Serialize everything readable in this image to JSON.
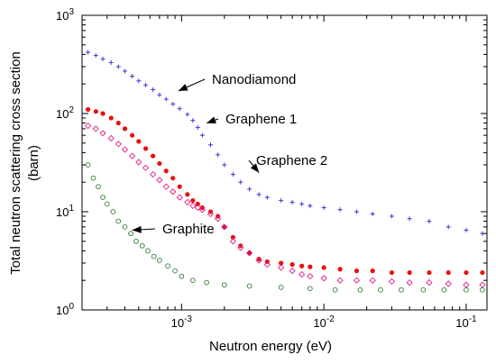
{
  "chart_data": {
    "type": "scatter",
    "xscale": "log",
    "yscale": "log",
    "xlim": [
      0.0002,
      0.14
    ],
    "ylim": [
      1,
      1000
    ],
    "xlabel": "Neutron energy (eV)",
    "ylabel_line1": "Total neutron scattering cross section",
    "ylabel_line2": "(barn)",
    "grid": false,
    "legend": "none",
    "xticks": [
      {
        "value": 0.001,
        "base": "10",
        "exp": "-3"
      },
      {
        "value": 0.01,
        "base": "10",
        "exp": "-2"
      },
      {
        "value": 0.1,
        "base": "10",
        "exp": "-1"
      }
    ],
    "yticks": [
      {
        "value": 1,
        "base": "10",
        "exp": "0"
      },
      {
        "value": 10,
        "base": "10",
        "exp": "1"
      },
      {
        "value": 100,
        "base": "10",
        "exp": "2"
      },
      {
        "value": 1000,
        "base": "10",
        "exp": "3"
      }
    ],
    "series": [
      {
        "name": "Nanodiamond",
        "marker": "plus",
        "color": "#3b3bd6",
        "points": [
          [
            0.00022,
            420
          ],
          [
            0.00025,
            390
          ],
          [
            0.00028,
            360
          ],
          [
            0.00032,
            330
          ],
          [
            0.00036,
            300
          ],
          [
            0.0004,
            270
          ],
          [
            0.00045,
            240
          ],
          [
            0.0005,
            215
          ],
          [
            0.00056,
            195
          ],
          [
            0.00063,
            175
          ],
          [
            0.0007,
            155
          ],
          [
            0.00078,
            140
          ],
          [
            0.00087,
            125
          ],
          [
            0.00097,
            112
          ],
          [
            0.0011,
            98
          ],
          [
            0.0012,
            85
          ],
          [
            0.0013,
            72
          ],
          [
            0.0014,
            60
          ],
          [
            0.0016,
            48
          ],
          [
            0.0018,
            38
          ],
          [
            0.002,
            30
          ],
          [
            0.0023,
            24
          ],
          [
            0.0026,
            20
          ],
          [
            0.003,
            17
          ],
          [
            0.0035,
            15
          ],
          [
            0.004,
            14
          ],
          [
            0.005,
            13
          ],
          [
            0.006,
            12.5
          ],
          [
            0.007,
            12
          ],
          [
            0.008,
            11.5
          ],
          [
            0.01,
            11
          ],
          [
            0.013,
            10.5
          ],
          [
            0.017,
            10
          ],
          [
            0.022,
            9.5
          ],
          [
            0.03,
            9
          ],
          [
            0.04,
            8.5
          ],
          [
            0.055,
            8
          ],
          [
            0.075,
            7
          ],
          [
            0.1,
            6.5
          ],
          [
            0.13,
            6
          ]
        ]
      },
      {
        "name": "Graphene 1",
        "marker": "dot",
        "color": "#e81010",
        "points": [
          [
            0.00022,
            110
          ],
          [
            0.00025,
            105
          ],
          [
            0.00028,
            100
          ],
          [
            0.00032,
            90
          ],
          [
            0.00036,
            80
          ],
          [
            0.0004,
            70
          ],
          [
            0.00045,
            60
          ],
          [
            0.0005,
            52
          ],
          [
            0.00056,
            44
          ],
          [
            0.00063,
            37
          ],
          [
            0.0007,
            31
          ],
          [
            0.00078,
            26
          ],
          [
            0.00087,
            22
          ],
          [
            0.00097,
            18
          ],
          [
            0.0011,
            15
          ],
          [
            0.0012,
            13
          ],
          [
            0.0013,
            12
          ],
          [
            0.0014,
            11
          ],
          [
            0.0016,
            10
          ],
          [
            0.0018,
            9
          ],
          [
            0.002,
            7
          ],
          [
            0.0023,
            5.5
          ],
          [
            0.0026,
            4.5
          ],
          [
            0.003,
            3.8
          ],
          [
            0.0035,
            3.3
          ],
          [
            0.004,
            3.1
          ],
          [
            0.005,
            3
          ],
          [
            0.006,
            2.9
          ],
          [
            0.007,
            2.8
          ],
          [
            0.008,
            2.75
          ],
          [
            0.01,
            2.7
          ],
          [
            0.013,
            2.6
          ],
          [
            0.017,
            2.5
          ],
          [
            0.022,
            2.5
          ],
          [
            0.03,
            2.4
          ],
          [
            0.04,
            2.4
          ],
          [
            0.055,
            2.4
          ],
          [
            0.075,
            2.4
          ],
          [
            0.1,
            2.4
          ],
          [
            0.13,
            2.4
          ]
        ]
      },
      {
        "name": "Graphene 2",
        "marker": "diamond",
        "color": "#e0208a",
        "points": [
          [
            0.00022,
            75
          ],
          [
            0.00025,
            70
          ],
          [
            0.00028,
            63
          ],
          [
            0.00032,
            56
          ],
          [
            0.00036,
            49
          ],
          [
            0.0004,
            43
          ],
          [
            0.00045,
            37
          ],
          [
            0.0005,
            32
          ],
          [
            0.00056,
            28
          ],
          [
            0.00063,
            24
          ],
          [
            0.0007,
            21
          ],
          [
            0.00078,
            18
          ],
          [
            0.00087,
            16
          ],
          [
            0.00097,
            14
          ],
          [
            0.0011,
            12.5
          ],
          [
            0.0012,
            11.5
          ],
          [
            0.0013,
            11
          ],
          [
            0.0014,
            10.5
          ],
          [
            0.0016,
            9.5
          ],
          [
            0.0018,
            8.5
          ],
          [
            0.002,
            7
          ],
          [
            0.0023,
            5
          ],
          [
            0.0026,
            4.3
          ],
          [
            0.003,
            3.8
          ],
          [
            0.0035,
            3.2
          ],
          [
            0.004,
            2.9
          ],
          [
            0.005,
            2.7
          ],
          [
            0.006,
            2.5
          ],
          [
            0.007,
            2.3
          ],
          [
            0.008,
            2.2
          ],
          [
            0.01,
            2.1
          ],
          [
            0.013,
            2
          ],
          [
            0.017,
            2
          ],
          [
            0.022,
            2
          ],
          [
            0.03,
            1.95
          ],
          [
            0.04,
            1.9
          ],
          [
            0.055,
            1.9
          ],
          [
            0.075,
            1.85
          ],
          [
            0.1,
            1.8
          ],
          [
            0.13,
            1.8
          ]
        ]
      },
      {
        "name": "Graphite",
        "marker": "circle",
        "color": "#2e7d32",
        "points": [
          [
            0.00022,
            30
          ],
          [
            0.00024,
            22
          ],
          [
            0.00026,
            18
          ],
          [
            0.00028,
            14
          ],
          [
            0.0003,
            12
          ],
          [
            0.00033,
            10
          ],
          [
            0.00036,
            8
          ],
          [
            0.0004,
            7
          ],
          [
            0.00044,
            6
          ],
          [
            0.00048,
            5
          ],
          [
            0.00053,
            4.5
          ],
          [
            0.00058,
            4
          ],
          [
            0.00064,
            3.5
          ],
          [
            0.0007,
            3.2
          ],
          [
            0.0008,
            2.8
          ],
          [
            0.0009,
            2.5
          ],
          [
            0.001,
            2.2
          ],
          [
            0.0012,
            2
          ],
          [
            0.0015,
            1.9
          ],
          [
            0.002,
            1.8
          ],
          [
            0.003,
            1.75
          ],
          [
            0.005,
            1.7
          ],
          [
            0.008,
            1.65
          ],
          [
            0.012,
            1.6
          ],
          [
            0.018,
            1.6
          ],
          [
            0.025,
            1.6
          ],
          [
            0.035,
            1.6
          ],
          [
            0.05,
            1.6
          ],
          [
            0.07,
            1.6
          ],
          [
            0.1,
            1.6
          ],
          [
            0.13,
            1.6
          ]
        ]
      }
    ],
    "annotations": [
      {
        "text": "Nanodiamond",
        "x": 0.00095,
        "y": 170
      },
      {
        "text": "Graphene 1",
        "x": 0.0015,
        "y": 80
      },
      {
        "text": "Graphene 2",
        "x": 0.0035,
        "y": 25
      },
      {
        "text": "Graphite",
        "x": 0.00045,
        "y": 6.5
      }
    ]
  }
}
